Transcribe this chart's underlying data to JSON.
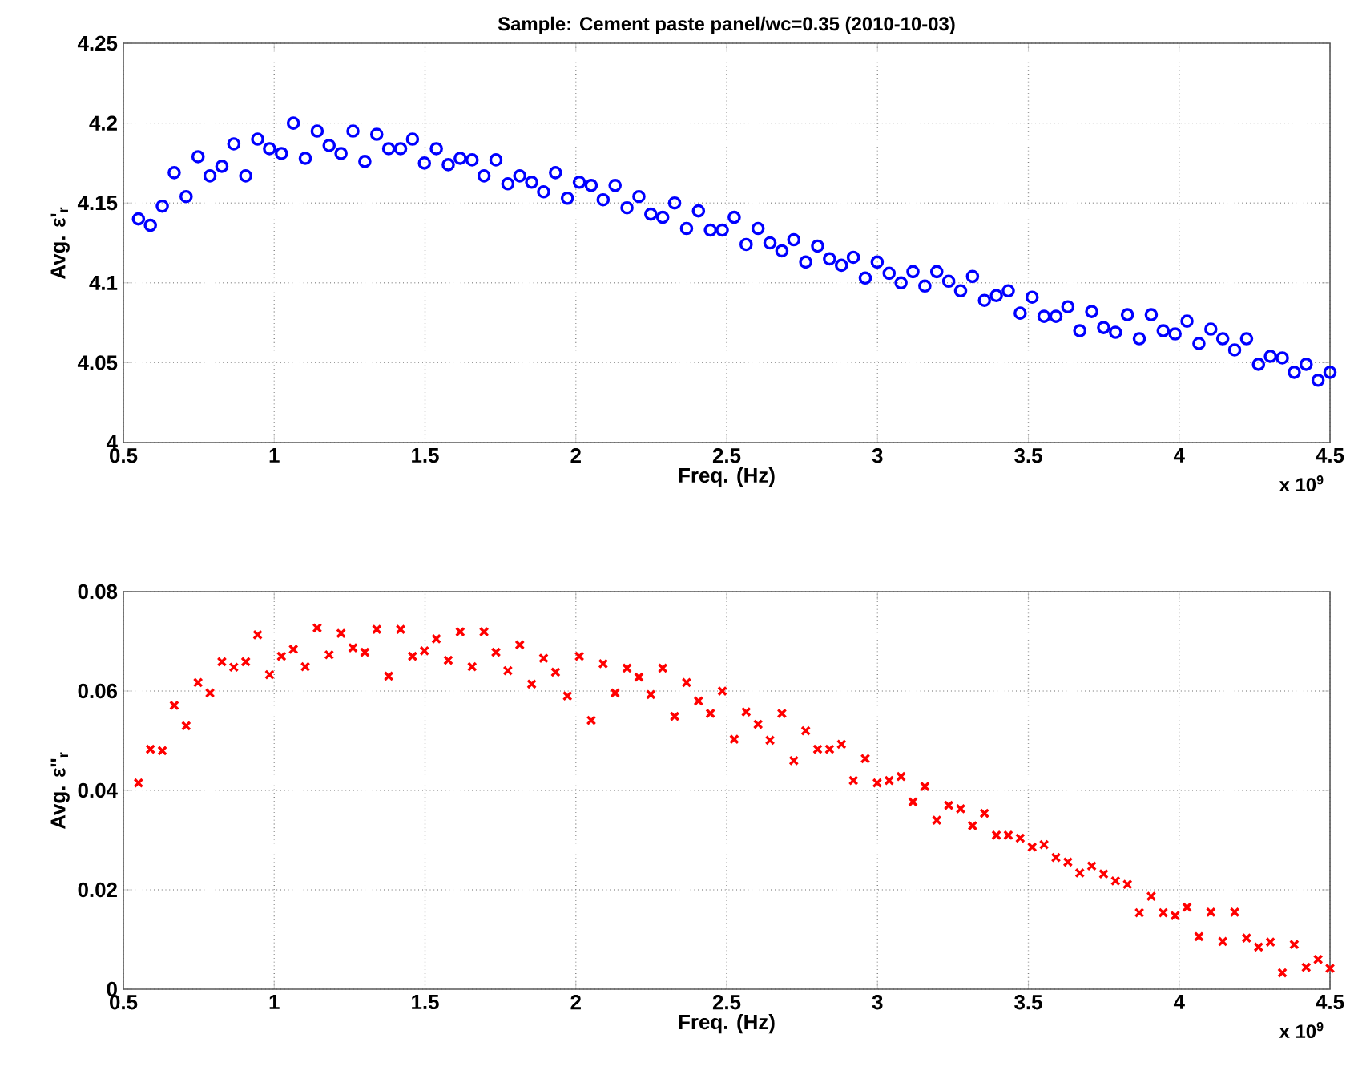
{
  "chart_data": [
    {
      "type": "scatter",
      "title": "Sample: Cement paste panel/wc=0.35 (2010-10-03)",
      "xlabel": "Freq. (Hz)",
      "ylabel": "Avg. ε'$_{r}$",
      "annotations": [
        "x 10$^{9}$"
      ],
      "marker": "circle",
      "grid": true,
      "color": "#0000ff",
      "xlim": [
        0.5,
        4.5
      ],
      "ylim": [
        4,
        4.25
      ],
      "xticks": [
        0.5,
        1,
        1.5,
        2,
        2.5,
        3,
        3.5,
        4,
        4.5
      ],
      "yticks": [
        4,
        4.05,
        4.1,
        4.15,
        4.2,
        4.25
      ],
      "x": [
        0.55,
        0.5895,
        0.629,
        0.6685,
        0.708,
        0.7475,
        0.787,
        0.8265,
        0.866,
        0.9055,
        0.945,
        0.9845,
        1.024,
        1.0635,
        1.103,
        1.1425,
        1.182,
        1.2215,
        1.261,
        1.3005,
        1.34,
        1.3795,
        1.419,
        1.4585,
        1.498,
        1.5375,
        1.577,
        1.6165,
        1.656,
        1.6955,
        1.735,
        1.7745,
        1.814,
        1.8535,
        1.893,
        1.9325,
        1.972,
        2.0115,
        2.051,
        2.0905,
        2.13,
        2.1695,
        2.209,
        2.2485,
        2.288,
        2.3275,
        2.367,
        2.4065,
        2.446,
        2.4855,
        2.525,
        2.5645,
        2.604,
        2.6435,
        2.683,
        2.7225,
        2.762,
        2.8015,
        2.841,
        2.8805,
        2.92,
        2.9595,
        2.999,
        3.0385,
        3.078,
        3.1175,
        3.157,
        3.1965,
        3.236,
        3.2755,
        3.315,
        3.3545,
        3.394,
        3.4335,
        3.473,
        3.5125,
        3.552,
        3.5915,
        3.631,
        3.6705,
        3.71,
        3.7495,
        3.789,
        3.8285,
        3.868,
        3.9075,
        3.947,
        3.9865,
        4.026,
        4.0655,
        4.105,
        4.1445,
        4.184,
        4.2235,
        4.263,
        4.3025,
        4.342,
        4.3815,
        4.421,
        4.4605,
        4.5
      ],
      "values": [
        4.14,
        4.136,
        4.148,
        4.169,
        4.154,
        4.179,
        4.167,
        4.173,
        4.187,
        4.167,
        4.19,
        4.184,
        4.181,
        4.2,
        4.178,
        4.195,
        4.186,
        4.181,
        4.195,
        4.176,
        4.193,
        4.184,
        4.184,
        4.19,
        4.175,
        4.184,
        4.174,
        4.178,
        4.177,
        4.167,
        4.177,
        4.162,
        4.167,
        4.163,
        4.157,
        4.169,
        4.153,
        4.163,
        4.161,
        4.152,
        4.161,
        4.147,
        4.154,
        4.143,
        4.141,
        4.15,
        4.134,
        4.145,
        4.133,
        4.133,
        4.141,
        4.124,
        4.134,
        4.125,
        4.12,
        4.127,
        4.113,
        4.123,
        4.115,
        4.111,
        4.116,
        4.103,
        4.113,
        4.106,
        4.1,
        4.107,
        4.098,
        4.107,
        4.101,
        4.095,
        4.104,
        4.089,
        4.092,
        4.095,
        4.081,
        4.091,
        4.079,
        4.079,
        4.085,
        4.07,
        4.082,
        4.072,
        4.069,
        4.08,
        4.065,
        4.08,
        4.07,
        4.068,
        4.076,
        4.062,
        4.071,
        4.065,
        4.058,
        4.065,
        4.049,
        4.054,
        4.053,
        4.044,
        4.049,
        4.039,
        4.044
      ]
    },
    {
      "type": "scatter",
      "xlabel": "Freq. (Hz)",
      "ylabel": "Avg. ε''$_{r}$",
      "annotations": [
        "x 10$^{9}$"
      ],
      "marker": "cross",
      "grid": true,
      "color": "#ff0000",
      "xlim": [
        0.5,
        4.5
      ],
      "ylim": [
        0,
        0.08
      ],
      "xticks": [
        0.5,
        1,
        1.5,
        2,
        2.5,
        3,
        3.5,
        4,
        4.5
      ],
      "yticks": [
        0,
        0.02,
        0.04,
        0.06,
        0.08
      ],
      "x": [
        0.55,
        0.5895,
        0.629,
        0.6685,
        0.708,
        0.7475,
        0.787,
        0.8265,
        0.866,
        0.9055,
        0.945,
        0.9845,
        1.024,
        1.0635,
        1.103,
        1.1425,
        1.182,
        1.2215,
        1.261,
        1.3005,
        1.34,
        1.3795,
        1.419,
        1.4585,
        1.498,
        1.5375,
        1.577,
        1.6165,
        1.656,
        1.6955,
        1.735,
        1.7745,
        1.814,
        1.8535,
        1.893,
        1.9325,
        1.972,
        2.0115,
        2.051,
        2.0905,
        2.13,
        2.1695,
        2.209,
        2.2485,
        2.288,
        2.3275,
        2.367,
        2.4065,
        2.446,
        2.4855,
        2.525,
        2.5645,
        2.604,
        2.6435,
        2.683,
        2.7225,
        2.762,
        2.8015,
        2.841,
        2.8805,
        2.92,
        2.9595,
        2.999,
        3.0385,
        3.078,
        3.1175,
        3.157,
        3.1965,
        3.236,
        3.2755,
        3.315,
        3.3545,
        3.394,
        3.4335,
        3.473,
        3.5125,
        3.552,
        3.5915,
        3.631,
        3.6705,
        3.71,
        3.7495,
        3.789,
        3.8285,
        3.868,
        3.9075,
        3.947,
        3.9865,
        4.026,
        4.0655,
        4.105,
        4.1445,
        4.184,
        4.2235,
        4.263,
        4.3025,
        4.342,
        4.3815,
        4.421,
        4.4605,
        4.5
      ],
      "values": [
        0.0415,
        0.0483,
        0.048,
        0.0571,
        0.053,
        0.0617,
        0.0596,
        0.0659,
        0.0648,
        0.0659,
        0.0713,
        0.0633,
        0.067,
        0.0684,
        0.0649,
        0.0727,
        0.0673,
        0.0716,
        0.0687,
        0.0678,
        0.0724,
        0.063,
        0.0724,
        0.067,
        0.0681,
        0.0705,
        0.0662,
        0.0719,
        0.0649,
        0.0719,
        0.0678,
        0.0641,
        0.0693,
        0.0614,
        0.0666,
        0.0638,
        0.059,
        0.067,
        0.0541,
        0.0655,
        0.0596,
        0.0646,
        0.0628,
        0.0593,
        0.0646,
        0.0549,
        0.0617,
        0.058,
        0.0555,
        0.06,
        0.0503,
        0.0558,
        0.0533,
        0.0501,
        0.0555,
        0.046,
        0.052,
        0.0483,
        0.0483,
        0.0493,
        0.042,
        0.0464,
        0.0415,
        0.042,
        0.0428,
        0.0377,
        0.0408,
        0.034,
        0.037,
        0.0363,
        0.0329,
        0.0354,
        0.031,
        0.031,
        0.0304,
        0.0286,
        0.0291,
        0.0265,
        0.0256,
        0.0234,
        0.0248,
        0.0232,
        0.0218,
        0.0211,
        0.0154,
        0.0187,
        0.0154,
        0.0148,
        0.0165,
        0.0106,
        0.0155,
        0.0096,
        0.0155,
        0.0103,
        0.0085,
        0.0095,
        0.0033,
        0.009,
        0.0044,
        0.006,
        0.0042
      ]
    }
  ]
}
